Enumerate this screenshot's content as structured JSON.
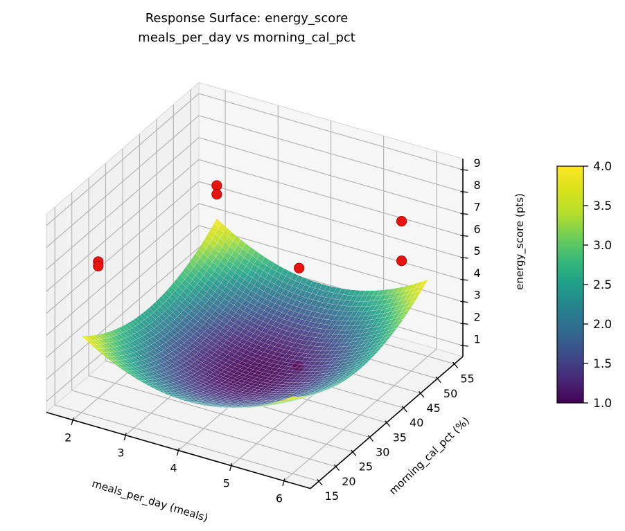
{
  "title": {
    "line1": "Response Surface: energy_score",
    "line2": "meals_per_day vs morning_cal_pct"
  },
  "chart_data": {
    "type": "surface3d",
    "title": "Response Surface: energy_score\nmeals_per_day vs morning_cal_pct",
    "view": {
      "projection": "matplotlib-3d",
      "elev_deg": 30,
      "azim_deg": -60
    },
    "x_axis": {
      "label": "meals_per_day (meals)",
      "ticks": [
        2,
        3,
        4,
        5,
        6
      ],
      "tick_labels": [
        "2",
        "3",
        "4",
        "5",
        "6"
      ],
      "range": [
        1.5,
        6.5
      ]
    },
    "y_axis": {
      "label": "morning_cal_pct (%)",
      "ticks": [
        15,
        20,
        25,
        30,
        35,
        40,
        45,
        50,
        55
      ],
      "tick_labels": [
        "15",
        "20",
        "25",
        "30",
        "35",
        "40",
        "45",
        "50",
        "55"
      ],
      "range": [
        12.5,
        57.5
      ]
    },
    "z_axis": {
      "label": "energy_score (pts)",
      "ticks": [
        1,
        2,
        3,
        4,
        5,
        6,
        7,
        8,
        9
      ],
      "tick_labels": [
        "1",
        "2",
        "3",
        "4",
        "5",
        "6",
        "7",
        "8",
        "9"
      ],
      "range": [
        0.5,
        9.5
      ]
    },
    "surface": {
      "description": "fitted quadratic response surface (bowl): minimum ~1.0 near meals_per_day=4, morning_cal_pct=35, rising to ~4.0 at the domain corners",
      "model": "z = z0 + a*(x-x0)^2 + b*(y-y0)^2",
      "params": {
        "z0": 1.0,
        "a": 0.4,
        "x0": 4.0,
        "b": 0.0035,
        "y0": 35.0
      },
      "x_domain": [
        2,
        6
      ],
      "y_domain": [
        15,
        55
      ],
      "z_min": 1.0,
      "z_max": 4.0,
      "colormap": "viridis",
      "clim": [
        1.0,
        4.0
      ],
      "alpha": 0.9,
      "grid_n": 44
    },
    "scatter": {
      "marker": "circle",
      "color": "#e8120e",
      "edge_color": "#a30000",
      "points": [
        {
          "x": 2.0,
          "y": 55,
          "z": 5.5
        },
        {
          "x": 2.0,
          "y": 55,
          "z": 5.1
        },
        {
          "x": 2.0,
          "y": 20,
          "z": 6.7
        },
        {
          "x": 2.0,
          "y": 20,
          "z": 6.5
        },
        {
          "x": 5.5,
          "y": 55,
          "z": 6.3
        },
        {
          "x": 5.5,
          "y": 55,
          "z": 4.5
        },
        {
          "x": 4.2,
          "y": 45,
          "z": 4.6
        },
        {
          "x": 4.5,
          "y": 40,
          "z": 1.0,
          "occluded": true
        }
      ]
    },
    "colorbar": {
      "colormap": "viridis",
      "range": [
        1.0,
        4.0
      ],
      "ticks": [
        1.0,
        1.5,
        2.0,
        2.5,
        3.0,
        3.5,
        4.0
      ],
      "tick_labels": [
        "1.0",
        "1.5",
        "2.0",
        "2.5",
        "3.0",
        "3.5",
        "4.0"
      ]
    },
    "grid": true,
    "legend": "none",
    "colors": {
      "pane_left": "#f1f1f1",
      "pane_right": "#f6f6f6",
      "pane_floor": "#f3f3f3",
      "pane_edge": "#d6d6d6",
      "grid_line": "#b5b5b5",
      "axis_line": "#000000",
      "background": "#ffffff"
    },
    "viridis_stops": [
      [
        0.0,
        "#440154"
      ],
      [
        0.1,
        "#482878"
      ],
      [
        0.2,
        "#3e4a89"
      ],
      [
        0.3,
        "#31688e"
      ],
      [
        0.4,
        "#26828e"
      ],
      [
        0.5,
        "#1f9e89"
      ],
      [
        0.6,
        "#35b779"
      ],
      [
        0.7,
        "#6ece58"
      ],
      [
        0.8,
        "#b5de2b"
      ],
      [
        0.9,
        "#d8e219"
      ],
      [
        1.0,
        "#fde725"
      ]
    ]
  }
}
